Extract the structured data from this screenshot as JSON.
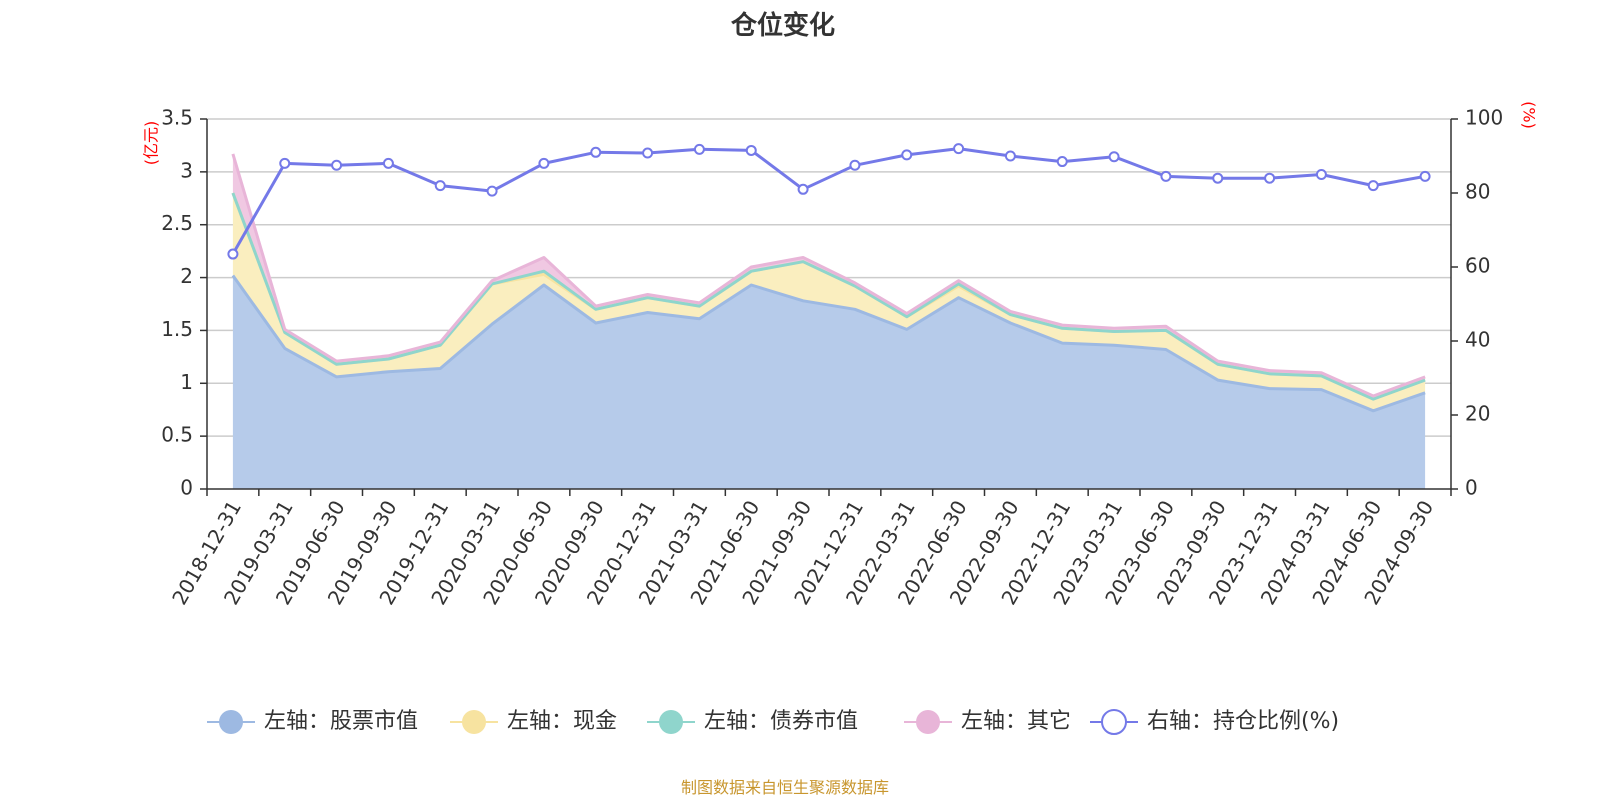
{
  "chart_data": {
    "type": "area",
    "title": "仓位变化",
    "source": "制图数据来自恒生聚源数据库",
    "categories": [
      "2018-12-31",
      "2019-03-31",
      "2019-06-30",
      "2019-09-30",
      "2019-12-31",
      "2020-03-31",
      "2020-06-30",
      "2020-09-30",
      "2020-12-31",
      "2021-03-31",
      "2021-06-30",
      "2021-09-30",
      "2021-12-31",
      "2022-03-31",
      "2022-06-30",
      "2022-09-30",
      "2022-12-31",
      "2023-03-31",
      "2023-06-30",
      "2023-09-30",
      "2023-12-31",
      "2024-03-31",
      "2024-06-30",
      "2024-09-30"
    ],
    "left_axis": {
      "unit": "(亿元)",
      "range": [
        0,
        3.5
      ],
      "ticks": [
        "0",
        "0.5",
        "1",
        "1.5",
        "2",
        "2.5",
        "3",
        "3.5"
      ]
    },
    "right_axis": {
      "unit": "(%)",
      "range": [
        0,
        100
      ],
      "ticks": [
        "0",
        "20",
        "40",
        "60",
        "80",
        "100"
      ]
    },
    "grid": true,
    "legend_position": "bottom",
    "series": [
      {
        "name": "左轴：股票市值",
        "axis": "left",
        "color": "#9db9e2",
        "fill": "#b6cbea",
        "values": [
          2.02,
          1.33,
          1.06,
          1.11,
          1.14,
          1.56,
          1.93,
          1.57,
          1.67,
          1.61,
          1.93,
          1.78,
          1.7,
          1.51,
          1.81,
          1.57,
          1.38,
          1.36,
          1.32,
          1.03,
          0.95,
          0.94,
          0.74,
          0.91
        ]
      },
      {
        "name": "左轴：现金",
        "axis": "left",
        "color": "#f7e3a0",
        "fill": "#faeebf",
        "values": [
          0.78,
          0.15,
          0.12,
          0.12,
          0.22,
          0.38,
          0.1,
          0.13,
          0.14,
          0.12,
          0.13,
          0.37,
          0.22,
          0.12,
          0.11,
          0.08,
          0.14,
          0.13,
          0.18,
          0.15,
          0.14,
          0.13,
          0.11,
          0.12
        ]
      },
      {
        "name": "左轴：债券市值",
        "axis": "left",
        "color": "#8fd5cc",
        "fill": "#a7ded6",
        "values": [
          0.0,
          0.0,
          0.0,
          0.0,
          0.0,
          0.0,
          0.03,
          0.0,
          0.0,
          0.0,
          0.0,
          0.0,
          0.0,
          0.0,
          0.02,
          0.0,
          0.0,
          0.0,
          0.0,
          0.0,
          0.0,
          0.0,
          0.0,
          0.0
        ]
      },
      {
        "name": "左轴：其它",
        "axis": "left",
        "color": "#e8b5d8",
        "fill": "#f0c8e2",
        "values": [
          0.37,
          0.03,
          0.03,
          0.03,
          0.03,
          0.03,
          0.13,
          0.03,
          0.03,
          0.03,
          0.04,
          0.04,
          0.03,
          0.03,
          0.03,
          0.03,
          0.03,
          0.03,
          0.04,
          0.03,
          0.03,
          0.03,
          0.03,
          0.03
        ]
      },
      {
        "name": "右轴：持仓比例(%)",
        "axis": "right",
        "color": "#7479e8",
        "values": [
          63.5,
          88.0,
          87.5,
          88.0,
          82.0,
          80.5,
          88.0,
          91.0,
          90.8,
          91.8,
          91.5,
          81.0,
          87.5,
          90.3,
          92.0,
          90.0,
          88.5,
          89.8,
          84.5,
          84.0,
          84.0,
          85.0,
          82.0,
          84.5
        ]
      }
    ]
  }
}
